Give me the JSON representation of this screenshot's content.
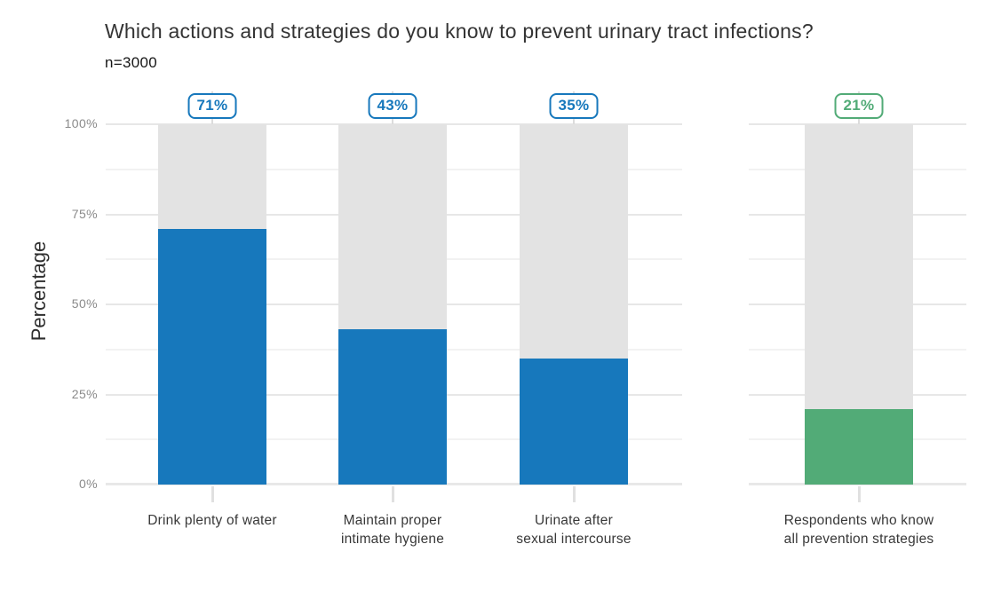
{
  "chart_data": {
    "type": "bar",
    "title": "Which actions and strategies do you know to prevent urinary tract infections?",
    "subtitle": "n=3000",
    "ylabel": "Percentage",
    "ylim": [
      0,
      100
    ],
    "yticks": [
      0,
      25,
      50,
      75,
      100
    ],
    "ytick_labels": [
      "0%",
      "25%",
      "50%",
      "75%",
      "100%"
    ],
    "minor_yticks": [
      12.5,
      37.5,
      62.5,
      87.5
    ],
    "grid": "horizontal",
    "legend": "none",
    "categories": [
      "Drink plenty of water",
      "Maintain proper\nintimate hygiene",
      "Urinate after\nsexual intercourse",
      "Respondents who know\nall prevention strategies"
    ],
    "values": [
      71,
      43,
      35,
      21
    ],
    "value_labels": [
      "71%",
      "43%",
      "35%",
      "21%"
    ],
    "facets": [
      [
        0,
        1,
        2
      ],
      [
        3
      ]
    ],
    "bar_colors": [
      "#1778bc",
      "#1778bc",
      "#1778bc",
      "#52ab77"
    ],
    "colors": {
      "blue": "#1778bc",
      "green": "#52ab77",
      "track_gray": "#e3e3e3"
    }
  }
}
